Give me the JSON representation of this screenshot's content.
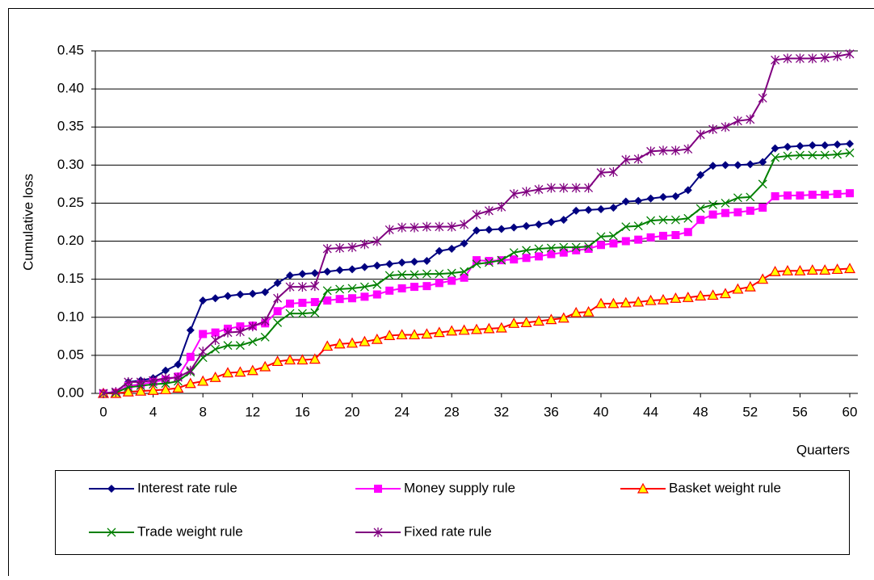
{
  "chart_data": {
    "type": "line",
    "y_label": "Cumulative loss",
    "x_label": "Quarters",
    "x": [
      0,
      1,
      2,
      3,
      4,
      5,
      6,
      7,
      8,
      9,
      10,
      11,
      12,
      13,
      14,
      15,
      16,
      17,
      18,
      19,
      20,
      21,
      22,
      23,
      24,
      25,
      26,
      27,
      28,
      29,
      30,
      31,
      32,
      33,
      34,
      35,
      36,
      37,
      38,
      39,
      40,
      41,
      42,
      43,
      44,
      45,
      46,
      47,
      48,
      49,
      50,
      51,
      52,
      53,
      54,
      55,
      56,
      57,
      58,
      59,
      60
    ],
    "xlim": [
      0,
      60
    ],
    "xticks": [
      0,
      4,
      8,
      12,
      16,
      20,
      24,
      28,
      32,
      36,
      40,
      44,
      48,
      52,
      56,
      60
    ],
    "ylim": [
      0,
      0.45
    ],
    "yticks": [
      {
        "value": 0,
        "label": "0.00"
      },
      {
        "value": 0.05,
        "label": "0.05"
      },
      {
        "value": 0.1,
        "label": "0.10"
      },
      {
        "value": 0.15,
        "label": "0.15"
      },
      {
        "value": 0.2,
        "label": "0.20"
      },
      {
        "value": 0.25,
        "label": "0.25"
      },
      {
        "value": 0.3,
        "label": "0.30"
      },
      {
        "value": 0.35,
        "label": "0.35"
      },
      {
        "value": 0.4,
        "label": "0.40"
      },
      {
        "value": 0.45,
        "label": "0.45"
      }
    ],
    "grid": true,
    "legend": "bottom",
    "series": [
      {
        "name": "Interest rate rule",
        "color": "#000080",
        "marker": "diamond",
        "values": [
          0,
          0.002,
          0.015,
          0.017,
          0.02,
          0.03,
          0.038,
          0.083,
          0.122,
          0.125,
          0.128,
          0.13,
          0.131,
          0.133,
          0.145,
          0.155,
          0.157,
          0.158,
          0.16,
          0.162,
          0.163,
          0.166,
          0.168,
          0.17,
          0.172,
          0.173,
          0.174,
          0.187,
          0.19,
          0.197,
          0.214,
          0.215,
          0.216,
          0.218,
          0.22,
          0.222,
          0.225,
          0.228,
          0.24,
          0.241,
          0.242,
          0.244,
          0.252,
          0.253,
          0.256,
          0.258,
          0.259,
          0.267,
          0.287,
          0.299,
          0.3,
          0.3,
          0.301,
          0.304,
          0.322,
          0.324,
          0.325,
          0.326,
          0.326,
          0.327,
          0.328
        ]
      },
      {
        "name": "Money supply rule",
        "color": "#ff00ff",
        "marker": "square",
        "values": [
          0,
          0.001,
          0.01,
          0.012,
          0.015,
          0.018,
          0.022,
          0.048,
          0.078,
          0.08,
          0.085,
          0.088,
          0.089,
          0.092,
          0.108,
          0.118,
          0.119,
          0.12,
          0.122,
          0.124,
          0.125,
          0.127,
          0.13,
          0.135,
          0.138,
          0.14,
          0.141,
          0.145,
          0.148,
          0.152,
          0.175,
          0.174,
          0.175,
          0.176,
          0.178,
          0.18,
          0.183,
          0.185,
          0.188,
          0.19,
          0.195,
          0.197,
          0.2,
          0.202,
          0.205,
          0.207,
          0.208,
          0.212,
          0.228,
          0.235,
          0.237,
          0.238,
          0.24,
          0.244,
          0.259,
          0.26,
          0.26,
          0.261,
          0.261,
          0.262,
          0.263
        ]
      },
      {
        "name": "Basket weight rule",
        "color": "#ff0000",
        "marker": "triangle",
        "values": [
          0,
          0,
          0.002,
          0.003,
          0.004,
          0.005,
          0.007,
          0.013,
          0.016,
          0.021,
          0.027,
          0.028,
          0.03,
          0.035,
          0.042,
          0.044,
          0.044,
          0.045,
          0.062,
          0.065,
          0.066,
          0.068,
          0.071,
          0.076,
          0.077,
          0.077,
          0.078,
          0.08,
          0.082,
          0.083,
          0.084,
          0.085,
          0.086,
          0.092,
          0.093,
          0.095,
          0.097,
          0.099,
          0.106,
          0.107,
          0.118,
          0.118,
          0.119,
          0.12,
          0.122,
          0.123,
          0.125,
          0.126,
          0.128,
          0.129,
          0.131,
          0.137,
          0.14,
          0.15,
          0.16,
          0.161,
          0.161,
          0.162,
          0.162,
          0.163,
          0.164
        ]
      },
      {
        "name": "Trade weight rule",
        "color": "#008000",
        "marker": "x",
        "values": [
          0,
          0.001,
          0.008,
          0.01,
          0.012,
          0.013,
          0.016,
          0.028,
          0.047,
          0.058,
          0.063,
          0.063,
          0.068,
          0.074,
          0.093,
          0.105,
          0.105,
          0.106,
          0.135,
          0.137,
          0.138,
          0.14,
          0.143,
          0.155,
          0.156,
          0.156,
          0.157,
          0.157,
          0.158,
          0.16,
          0.17,
          0.172,
          0.175,
          0.185,
          0.188,
          0.19,
          0.191,
          0.192,
          0.192,
          0.193,
          0.206,
          0.207,
          0.219,
          0.22,
          0.227,
          0.228,
          0.228,
          0.23,
          0.243,
          0.248,
          0.25,
          0.257,
          0.258,
          0.275,
          0.31,
          0.312,
          0.313,
          0.313,
          0.313,
          0.314,
          0.316
        ]
      },
      {
        "name": "Fixed rate rule",
        "color": "#800080",
        "marker": "asterisk",
        "values": [
          0,
          0.002,
          0.015,
          0.015,
          0.017,
          0.02,
          0.021,
          0.03,
          0.055,
          0.07,
          0.08,
          0.081,
          0.088,
          0.095,
          0.125,
          0.14,
          0.14,
          0.141,
          0.19,
          0.191,
          0.192,
          0.196,
          0.2,
          0.215,
          0.218,
          0.218,
          0.219,
          0.219,
          0.219,
          0.222,
          0.235,
          0.24,
          0.245,
          0.262,
          0.265,
          0.268,
          0.27,
          0.27,
          0.27,
          0.27,
          0.29,
          0.291,
          0.307,
          0.308,
          0.318,
          0.319,
          0.319,
          0.321,
          0.34,
          0.347,
          0.35,
          0.358,
          0.36,
          0.388,
          0.438,
          0.44,
          0.44,
          0.44,
          0.441,
          0.443,
          0.446
        ]
      }
    ]
  }
}
